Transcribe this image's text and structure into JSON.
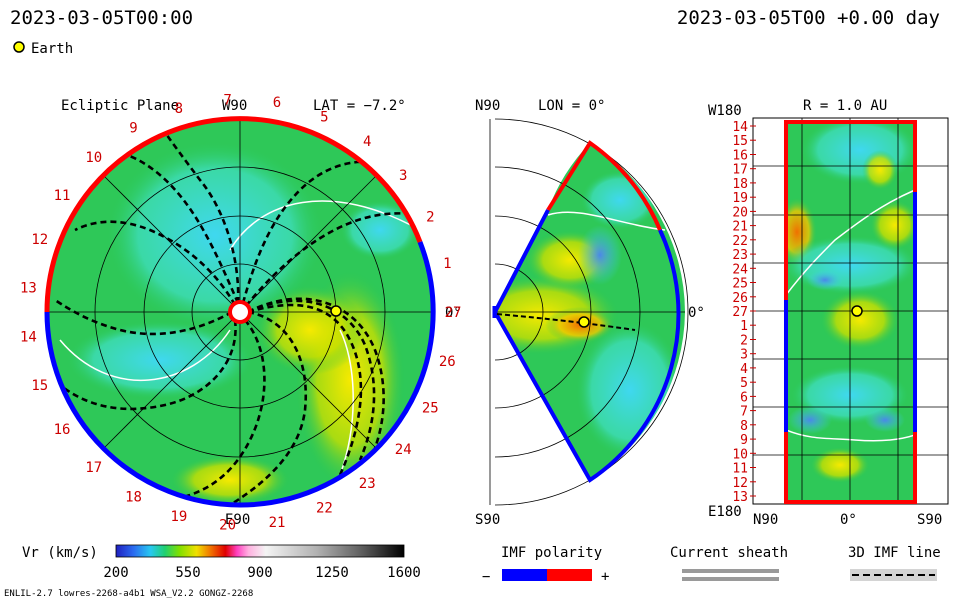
{
  "header": {
    "date_left": "2023-03-05T00:00",
    "date_right": "2023-03-05T00 +0.00 day",
    "earth_legend": "Earth"
  },
  "panels": {
    "ecliptic": {
      "title": "Ecliptic Plane",
      "top_label": "W90",
      "bottom_label": "E90",
      "right_label": "0°",
      "lat_label": "LAT = −7.2°",
      "carrington_labels": [
        "1",
        "2",
        "3",
        "4",
        "5",
        "6",
        "7",
        "8",
        "9",
        "10",
        "11",
        "12",
        "13",
        "14",
        "15",
        "16",
        "17",
        "18",
        "19",
        "20",
        "21",
        "22",
        "23",
        "24",
        "25",
        "26",
        "27"
      ]
    },
    "meridional": {
      "top_label": "N90",
      "bottom_label": "S90",
      "right_label": "0°",
      "lon_label": "LON = 0°"
    },
    "map": {
      "top_left_label": "W180",
      "title": "R = 1.0 AU",
      "bottom_left_label": "E180",
      "x_labels": [
        "N90",
        "0°",
        "S90"
      ],
      "y_labels": [
        "14",
        "15",
        "16",
        "17",
        "18",
        "19",
        "20",
        "21",
        "22",
        "23",
        "24",
        "25",
        "26",
        "27",
        "1",
        "2",
        "3",
        "4",
        "5",
        "6",
        "7",
        "8",
        "9",
        "10",
        "11",
        "12",
        "13"
      ]
    }
  },
  "colorbar": {
    "label": "Vr (km/s)",
    "ticks": [
      "200",
      "550",
      "900",
      "1250",
      "1600"
    ]
  },
  "legends": {
    "imf_title": "IMF polarity",
    "imf_minus": "−",
    "imf_plus": "+",
    "sheath_title": "Current sheath",
    "line_title": "3D IMF line"
  },
  "footer": {
    "left": "ENLIL-2.7 lowres-2268-a4b1 WSA_V2.2 GONGZ-2268"
  },
  "colors": {
    "positive_polarity": "#ff0000",
    "negative_polarity": "#0000ff",
    "earth_marker": "#ffff00",
    "label_red": "#cc0000"
  },
  "chart_data": {
    "type": "heatmap",
    "quantity": "Vr (km/s)",
    "colorbar_range": [
      200,
      1600
    ],
    "earth": {
      "carrington": 27,
      "r_au": 1.0,
      "lat_deg": -7.2,
      "lon_deg": 0
    },
    "sectors": [
      "ecliptic",
      "meridional",
      "map"
    ]
  }
}
